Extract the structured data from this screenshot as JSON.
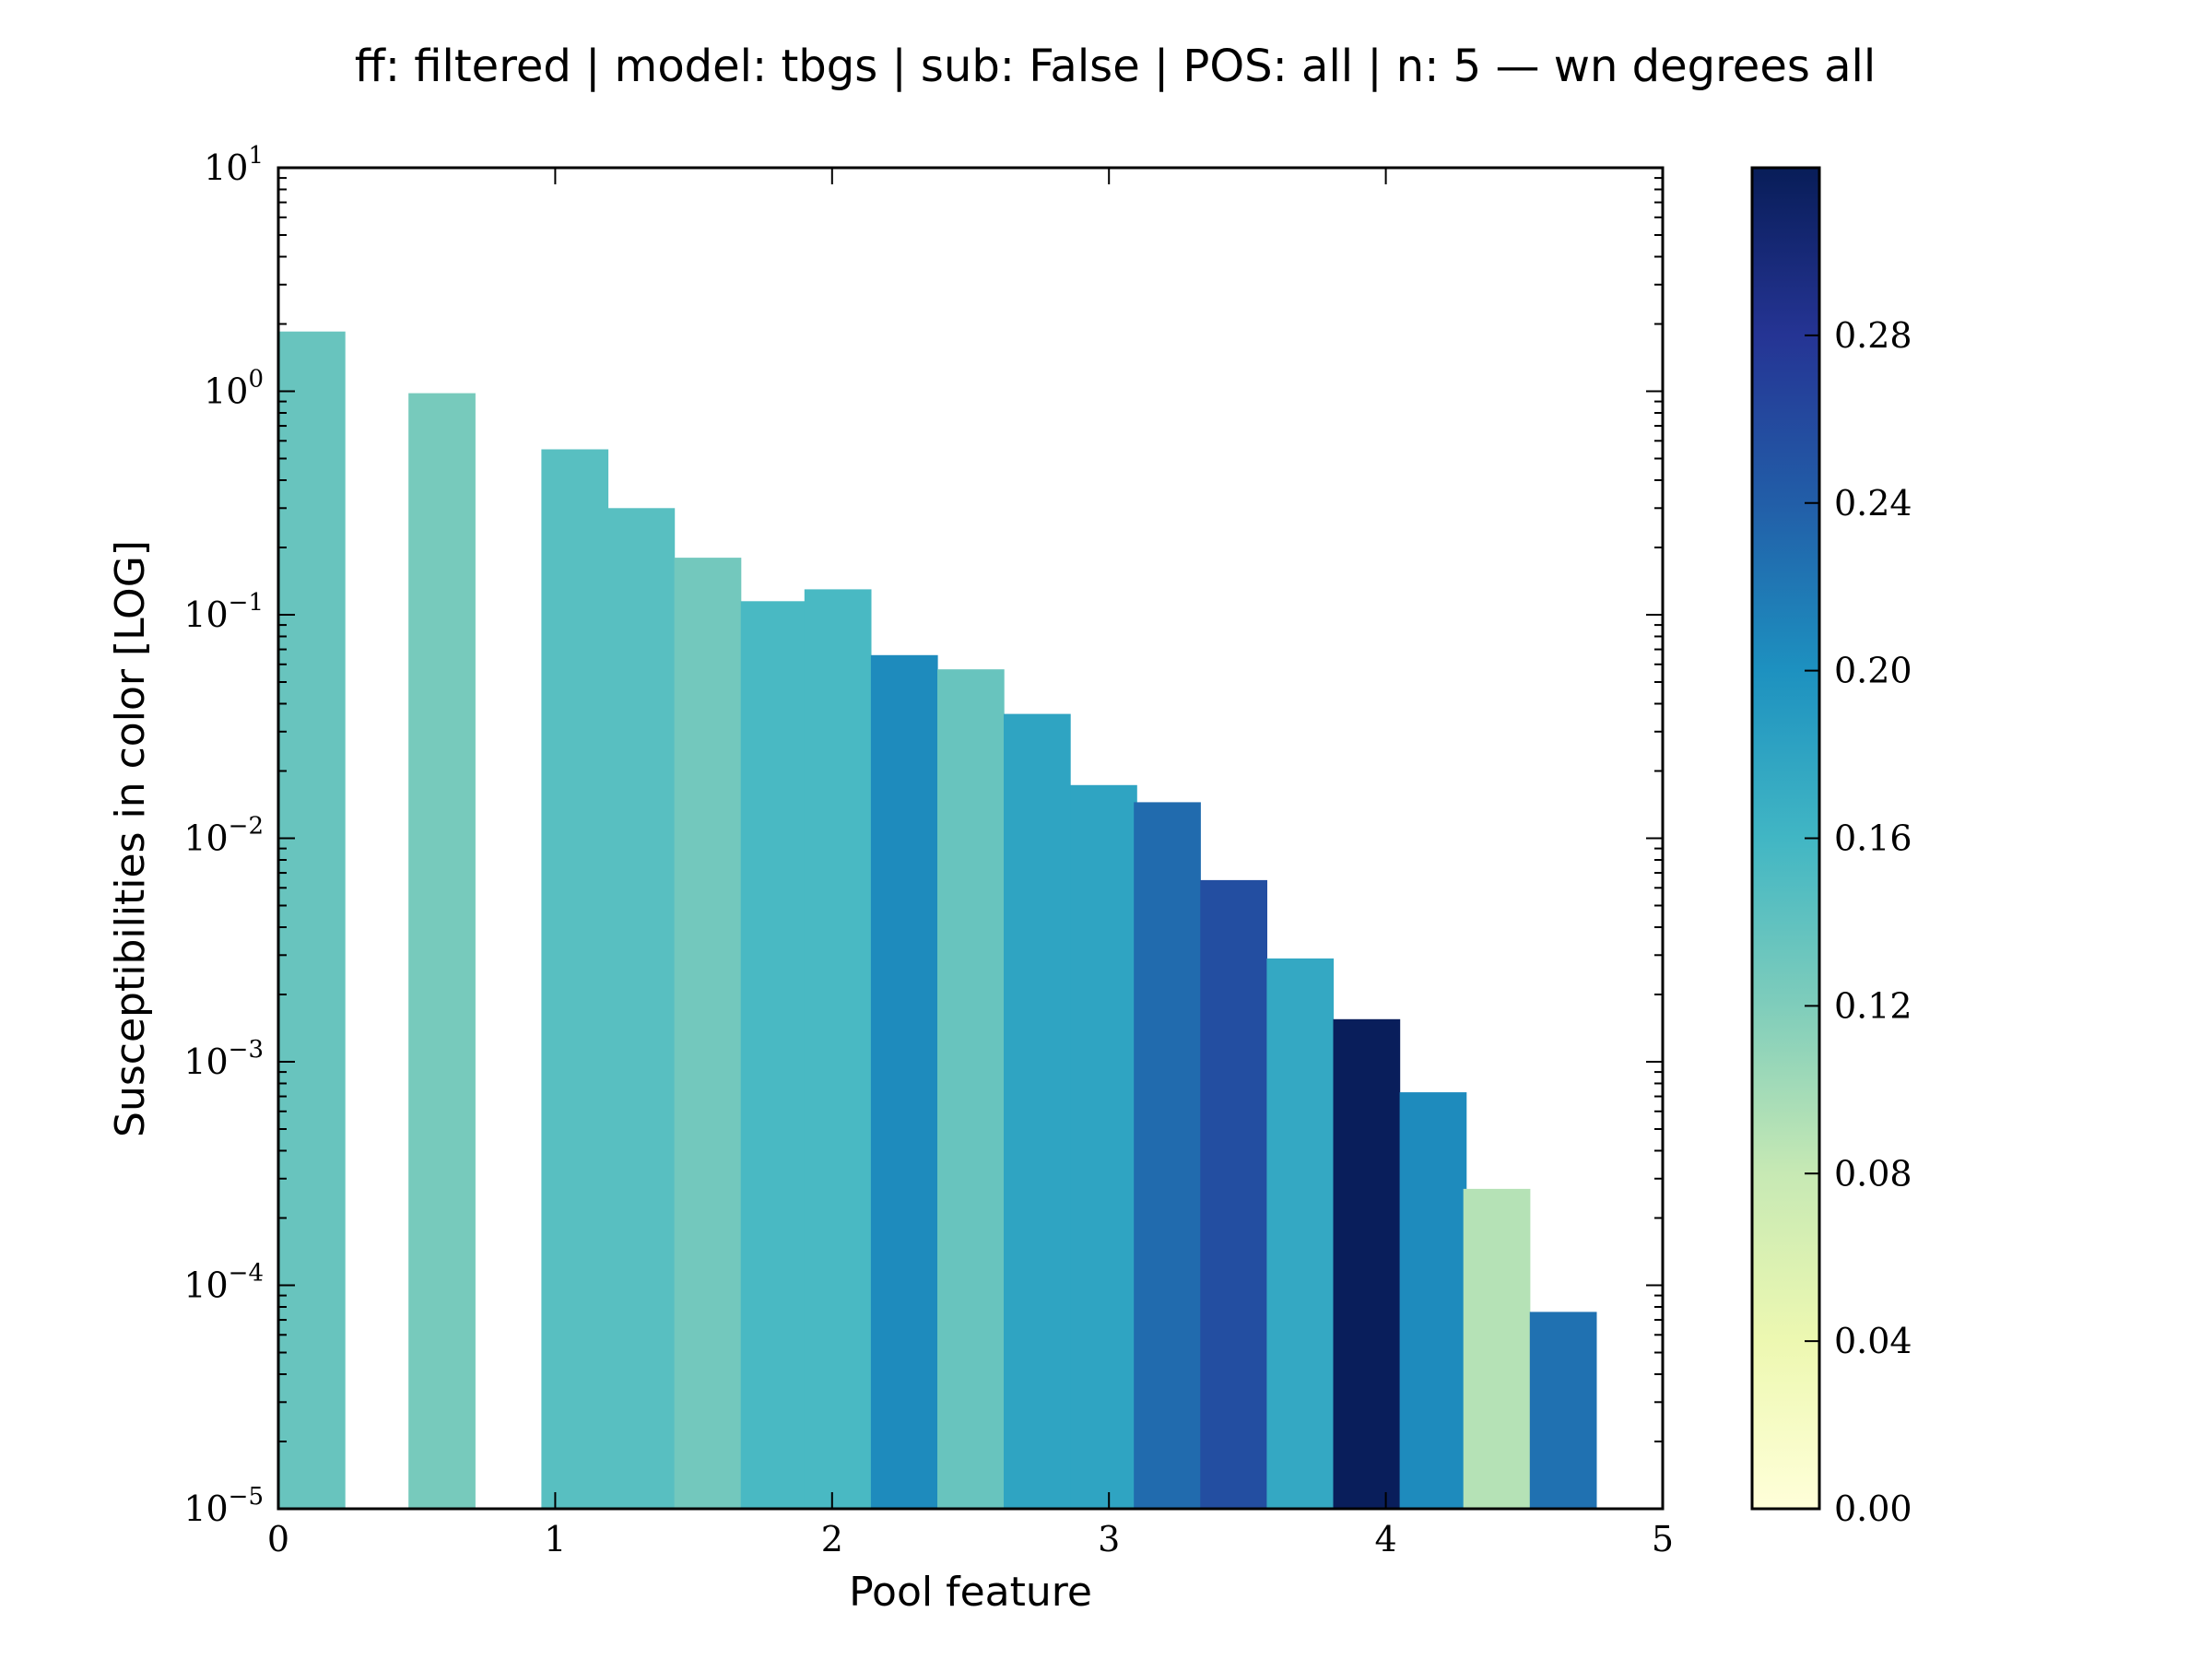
{
  "chart_data": {
    "type": "bar",
    "title": "ff: filtered | model: tbgs | sub: False | POS: all | n: 5 — wn degrees all",
    "xlabel": "Pool feature",
    "ylabel": "Susceptibilities in color [LOG]",
    "xlim": [
      0,
      5
    ],
    "ylim": [
      1e-05,
      10
    ],
    "yscale": "log",
    "grid": false,
    "x_ticks": [
      "0",
      "1",
      "2",
      "3",
      "4",
      "5"
    ],
    "y_ticks": [
      {
        "base": "10",
        "exp": "−5"
      },
      {
        "base": "10",
        "exp": "−4"
      },
      {
        "base": "10",
        "exp": "−3"
      },
      {
        "base": "10",
        "exp": "−2"
      },
      {
        "base": "10",
        "exp": "−1"
      },
      {
        "base": "10",
        "exp": "0"
      },
      {
        "base": "10",
        "exp": "1"
      }
    ],
    "bar_width": 0.24,
    "bars": [
      {
        "x": 0.0,
        "value": 1.85,
        "color_value": 0.135
      },
      {
        "x": 0.47,
        "value": 0.98,
        "color_value": 0.125
      },
      {
        "x": 0.95,
        "value": 0.55,
        "color_value": 0.145
      },
      {
        "x": 1.19,
        "value": 0.3,
        "color_value": 0.145
      },
      {
        "x": 1.43,
        "value": 0.18,
        "color_value": 0.128
      },
      {
        "x": 1.67,
        "value": 0.115,
        "color_value": 0.155
      },
      {
        "x": 1.9,
        "value": 0.13,
        "color_value": 0.155
      },
      {
        "x": 2.14,
        "value": 0.066,
        "color_value": 0.205
      },
      {
        "x": 2.38,
        "value": 0.057,
        "color_value": 0.135
      },
      {
        "x": 2.62,
        "value": 0.036,
        "color_value": 0.18
      },
      {
        "x": 2.86,
        "value": 0.0173,
        "color_value": 0.18
      },
      {
        "x": 3.09,
        "value": 0.0145,
        "color_value": 0.23
      },
      {
        "x": 3.33,
        "value": 0.0065,
        "color_value": 0.255
      },
      {
        "x": 3.57,
        "value": 0.0029,
        "color_value": 0.175
      },
      {
        "x": 3.81,
        "value": 0.00155,
        "color_value": 0.318
      },
      {
        "x": 4.05,
        "value": 0.00073,
        "color_value": 0.205
      },
      {
        "x": 4.28,
        "value": 0.00027,
        "color_value": 0.09
      },
      {
        "x": 4.52,
        "value": 7.6e-05,
        "color_value": 0.225
      }
    ],
    "colorbar": {
      "min": 0.0,
      "max": 0.32,
      "tick_values": [
        0.0,
        0.04,
        0.08,
        0.12,
        0.16,
        0.2,
        0.24,
        0.28
      ],
      "tick_labels": [
        "0.00",
        "0.04",
        "0.08",
        "0.12",
        "0.16",
        "0.20",
        "0.24",
        "0.28"
      ],
      "colormap": "YlGnBu",
      "stops": [
        "#ffffd9",
        "#edf8b1",
        "#c7e9b4",
        "#7fcdbb",
        "#41b6c4",
        "#1d91c0",
        "#225ea8",
        "#253494",
        "#081d58"
      ]
    }
  }
}
